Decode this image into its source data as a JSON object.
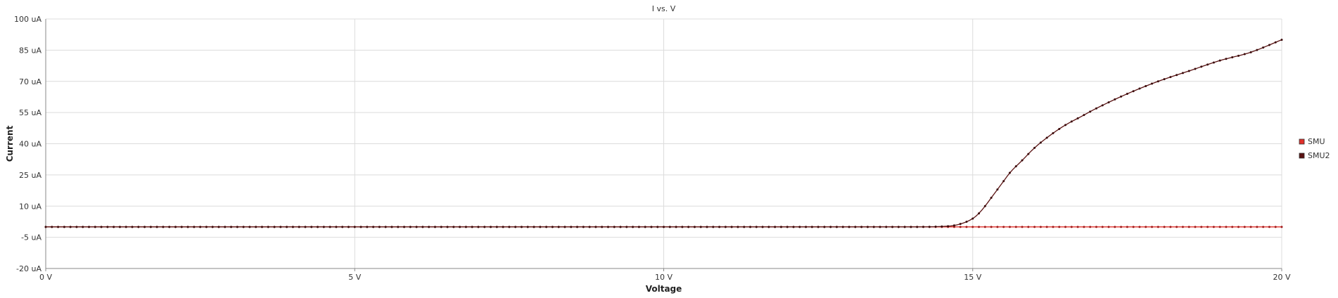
{
  "chart_data": {
    "type": "line",
    "title": "I vs. V",
    "xlabel": "Voltage",
    "ylabel": "Current",
    "x_unit": "V",
    "y_unit": "uA",
    "xlim": [
      0,
      20
    ],
    "ylim": [
      -20,
      100
    ],
    "x_ticks": [
      0,
      5,
      10,
      15,
      20
    ],
    "x_tick_labels": [
      "0 V",
      "5 V",
      "10 V",
      "15 V",
      "20 V"
    ],
    "y_ticks": [
      -20,
      -5,
      10,
      25,
      40,
      55,
      70,
      85,
      100
    ],
    "y_tick_labels": [
      "-20 uA",
      "-5 uA",
      "10 uA",
      "25 uA",
      "40 uA",
      "55 uA",
      "70 uA",
      "85 uA",
      "100 uA"
    ],
    "grid": true,
    "legend_position": "right",
    "series": [
      {
        "name": "SMU",
        "color": "#e0302a",
        "marker_color": "#a01818",
        "x": [
          0,
          1,
          2,
          3,
          4,
          5,
          6,
          7,
          8,
          9,
          10,
          11,
          12,
          13,
          14,
          15,
          16,
          17,
          18,
          19,
          20
        ],
        "y": [
          0,
          0,
          0,
          0,
          0,
          0,
          0,
          0,
          0,
          0,
          0,
          0,
          0,
          0,
          0,
          0,
          0,
          0,
          0,
          0,
          0
        ]
      },
      {
        "name": "SMU2",
        "color": "#5a1212",
        "marker_color": "#3a0a0a",
        "x": [
          0,
          1,
          2,
          3,
          4,
          5,
          6,
          7,
          8,
          9,
          10,
          11,
          12,
          13,
          14,
          14.5,
          14.75,
          15,
          15.1,
          15.2,
          15.3,
          15.4,
          15.5,
          15.6,
          15.8,
          16,
          16.25,
          16.5,
          16.75,
          17,
          17.5,
          18,
          18.5,
          19,
          19.5,
          20
        ],
        "y": [
          0,
          0,
          0,
          0,
          0,
          0,
          0,
          0,
          0,
          0,
          0,
          0,
          0,
          0,
          0,
          0.2,
          1,
          4,
          6.5,
          10,
          14,
          18,
          22,
          26,
          32,
          38,
          44,
          49,
          53,
          57,
          64,
          70,
          75,
          80,
          84,
          90
        ]
      }
    ]
  }
}
